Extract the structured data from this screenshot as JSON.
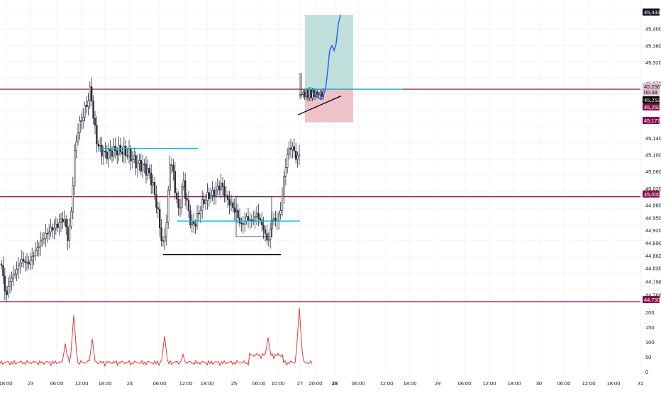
{
  "colors": {
    "background": "#ffffff",
    "grid": "#f0f3fa",
    "candle": "#2a2e39",
    "level_line": "#880e4f",
    "cyan_line": "#00bcd4",
    "trend_line": "#000000",
    "projection": "#2962ff",
    "target_zone": "#b2d8d3",
    "stop_zone": "#e8b4bc",
    "volume": "#e53935",
    "axis_text": "#131722"
  },
  "price_axis": {
    "ticks": [
      "45,400",
      "45,360",
      "45,320",
      "45,270",
      "45,220",
      "45,177",
      "45,140",
      "45,100",
      "45,060",
      "45,020",
      "44,980",
      "44,950",
      "44,920",
      "44,890",
      "44,860",
      "44,830",
      "44,798",
      "44,766"
    ]
  },
  "price_badges": [
    {
      "label": "45,433",
      "price": 45433,
      "style": "dark"
    },
    {
      "label": "45,256",
      "price": 45256,
      "style": "pink"
    },
    {
      "label": "06:38",
      "price": 45248,
      "style": "pink-sub"
    },
    {
      "label": "45,252",
      "price": 45244,
      "style": "black"
    },
    {
      "label": "45,250",
      "price": 45232,
      "style": "maroon"
    },
    {
      "label": "45,177",
      "price": 45177,
      "style": "maroon"
    },
    {
      "label": "45,000",
      "price": 45000,
      "style": "maroon"
    },
    {
      "label": "44,750",
      "price": 44750,
      "style": "maroon"
    }
  ],
  "volume_axis": {
    "ticks": [
      "200",
      "150",
      "100",
      "50",
      "0"
    ]
  },
  "time_axis": {
    "ticks": [
      "18:00",
      "23",
      "06:00",
      "12:00",
      "18:00",
      "24",
      "06:00",
      "12:00",
      "18:00",
      "25",
      "06:00",
      "10:00",
      "27",
      "20:00",
      "28",
      "06:00",
      "12:00",
      "18:00",
      "29",
      "06:00",
      "12:00",
      "18:00",
      "30",
      "06:00",
      "12:00",
      "18:00",
      "31"
    ]
  },
  "chart_data": {
    "type": "candlestick",
    "y_range": [
      44740,
      45450
    ],
    "volume_range": [
      0,
      220
    ],
    "horizontal_levels": [
      45256,
      45000,
      44750
    ],
    "drawings": {
      "support_lines": [
        45115,
        44942,
        44862
      ],
      "target": 45433,
      "entry": 45256,
      "stop": 45177
    },
    "volume_series": "intraday volume (red line)"
  }
}
